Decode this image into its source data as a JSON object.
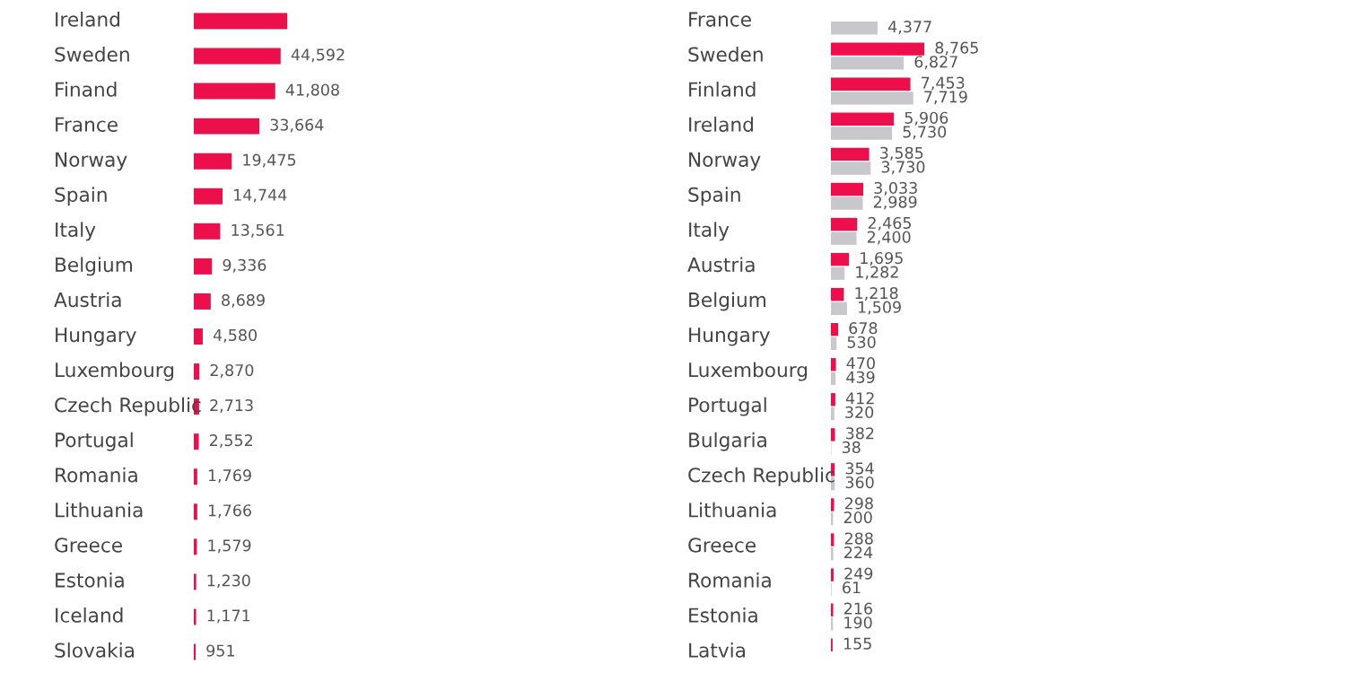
{
  "chart_data": [
    {
      "type": "bar",
      "orientation": "horizontal",
      "tick_labels": false,
      "categories": [
        "Ireland",
        "Sweden",
        "Finand",
        "France",
        "Norway",
        "Spain",
        "Italy",
        "Belgium",
        "Austria",
        "Hungary",
        "Luxembourg",
        "Czech Republic",
        "Portugal",
        "Romania",
        "Lithuania",
        "Greece",
        "Estonia",
        "Iceland",
        "Slovakia"
      ],
      "series": [
        {
          "color": "#ec0f4b",
          "values": [
            48000,
            44592,
            41808,
            33664,
            19475,
            14744,
            13561,
            9336,
            8689,
            4580,
            2870,
            2713,
            2552,
            1769,
            1766,
            1579,
            1230,
            1171,
            951
          ],
          "value_labels": [
            null,
            "44,592",
            "41,808",
            "33,664",
            "19,475",
            "14,744",
            "13,561",
            "9,336",
            "8,689",
            "4,580",
            "2,870",
            "2,713",
            "2,552",
            "1,769",
            "1,766",
            "1,579",
            "1,230",
            "1,171",
            "951"
          ]
        }
      ]
    },
    {
      "type": "bar",
      "orientation": "horizontal",
      "tick_labels": false,
      "categories": [
        "France",
        "Sweden",
        "Finland",
        "Ireland",
        "Norway",
        "Spain",
        "Italy",
        "Austria",
        "Belgium",
        "Hungary",
        "Luxembourg",
        "Portugal",
        "Bulgaria",
        "Czech Republic",
        "Lithuania",
        "Greece",
        "Romania",
        "Estonia",
        "Latvia"
      ],
      "series": [
        {
          "color": "#ec0f4b",
          "values": [
            null,
            8765,
            7453,
            5906,
            3585,
            3033,
            2465,
            1695,
            1218,
            678,
            470,
            412,
            382,
            354,
            298,
            288,
            249,
            216,
            155
          ],
          "value_labels": [
            null,
            "8,765",
            "7,453",
            "5,906",
            "3,585",
            "3,033",
            "2,465",
            "1,695",
            "1,218",
            "678",
            "470",
            "412",
            "382",
            "354",
            "298",
            "288",
            "249",
            "216",
            "155"
          ]
        },
        {
          "color": "#c8c8cc",
          "values": [
            4377,
            6827,
            7719,
            5730,
            3730,
            2989,
            2400,
            1282,
            1509,
            530,
            439,
            320,
            38,
            360,
            200,
            224,
            61,
            190,
            null
          ],
          "value_labels": [
            "4,377",
            "6,827",
            "7,719",
            "5,730",
            "3,730",
            "2,989",
            "2,400",
            "1,282",
            "1,509",
            "530",
            "439",
            "320",
            "38",
            "360",
            "200",
            "224",
            "61",
            "190",
            null
          ]
        }
      ]
    }
  ]
}
